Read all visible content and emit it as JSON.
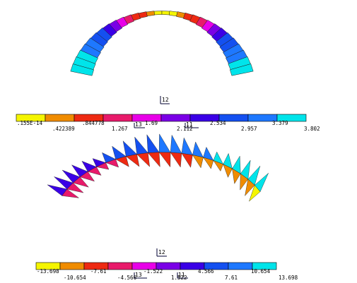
{
  "palette": [
    "#f5f500",
    "#f08c00",
    "#ee2a12",
    "#e81a6a",
    "#e800e8",
    "#7a00e6",
    "#3a00e6",
    "#1450f0",
    "#1e78ff",
    "#00e4ea"
  ],
  "scale1": {
    "labels_top": [
      ".155E-14",
      "1.267",
      "1.69",
      "2.534",
      "3.379"
    ],
    "labels_bottom": [
      ".422389",
      ".844778",
      "2.112",
      "2.957",
      "3.802"
    ]
  },
  "scale2": {
    "labels_top": [
      "-13.698",
      "-7.61",
      "-1.522",
      "4.566",
      "10.654"
    ],
    "labels_bottom": [
      "-10.654",
      "-4.566",
      "1.522",
      "7.61",
      "13.698"
    ]
  },
  "markers": {
    "top_12": "12",
    "top_13": "13",
    "top_11": "11",
    "bot_12": "12",
    "bot_13": "13",
    "bot_11": "11"
  }
}
